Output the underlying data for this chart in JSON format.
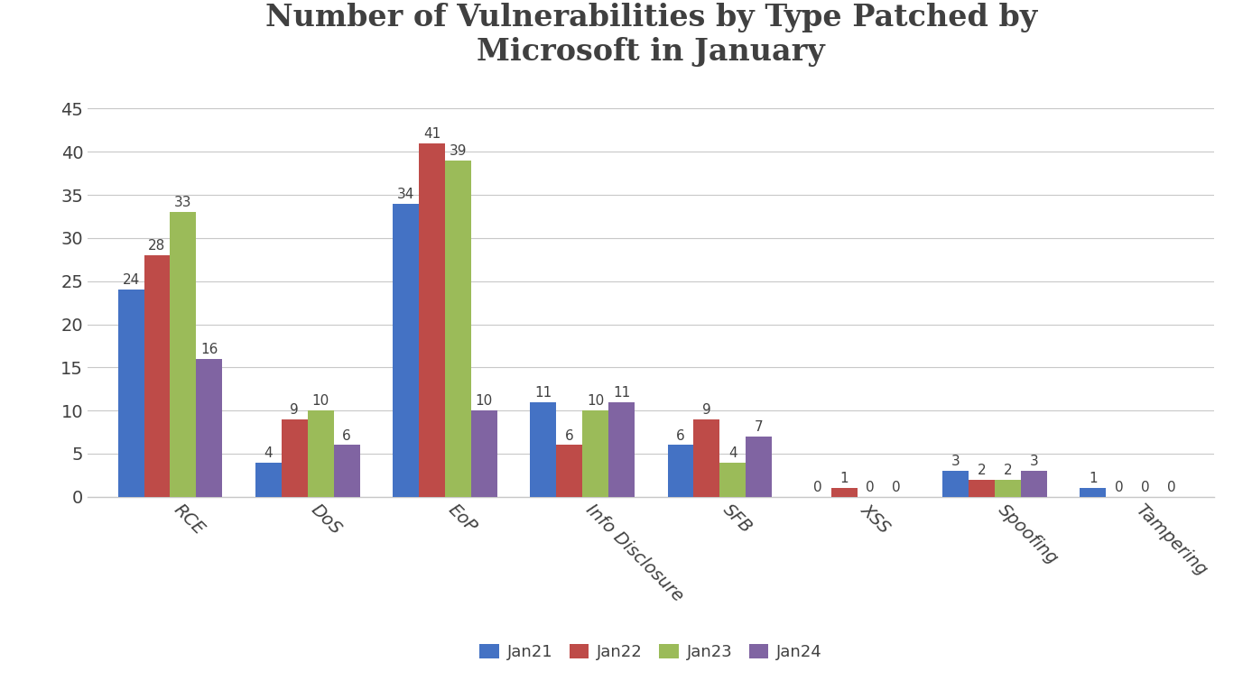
{
  "title": "Number of Vulnerabilities by Type Patched by\nMicrosoft in January",
  "categories": [
    "RCE",
    "DoS",
    "EoP",
    "Info Disclosure",
    "SFB",
    "XSS",
    "Spoofing",
    "Tampering"
  ],
  "series": {
    "Jan21": [
      24,
      4,
      34,
      11,
      6,
      0,
      3,
      1
    ],
    "Jan22": [
      28,
      9,
      41,
      6,
      9,
      1,
      2,
      0
    ],
    "Jan23": [
      33,
      10,
      39,
      10,
      4,
      0,
      2,
      0
    ],
    "Jan24": [
      16,
      6,
      10,
      11,
      7,
      0,
      3,
      0
    ]
  },
  "series_order": [
    "Jan21",
    "Jan22",
    "Jan23",
    "Jan24"
  ],
  "colors": {
    "Jan21": "#4472C4",
    "Jan22": "#BE4B48",
    "Jan23": "#9BBB59",
    "Jan24": "#8064A2"
  },
  "ylim": [
    0,
    48
  ],
  "yticks": [
    0,
    5,
    10,
    15,
    20,
    25,
    30,
    35,
    40,
    45
  ],
  "bar_width": 0.19,
  "title_fontsize": 24,
  "tick_fontsize": 14,
  "value_label_fontsize": 11,
  "legend_fontsize": 13,
  "background_color": "#FFFFFF",
  "grid_color": "#C8C8C8",
  "text_color": "#404040"
}
